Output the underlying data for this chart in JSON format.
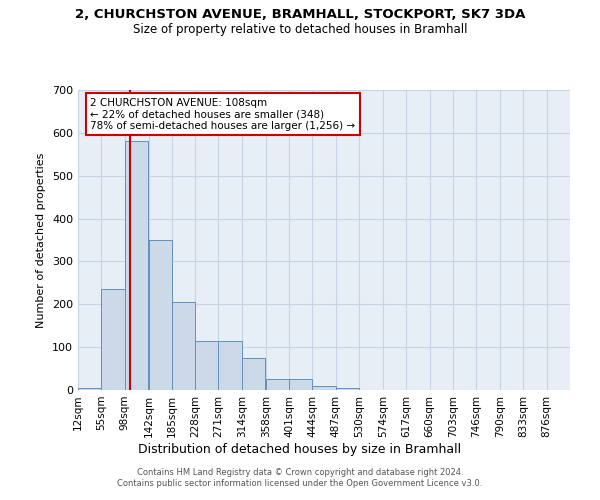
{
  "title_line1": "2, CHURCHSTON AVENUE, BRAMHALL, STOCKPORT, SK7 3DA",
  "title_line2": "Size of property relative to detached houses in Bramhall",
  "xlabel": "Distribution of detached houses by size in Bramhall",
  "ylabel": "Number of detached properties",
  "footer_line1": "Contains HM Land Registry data © Crown copyright and database right 2024.",
  "footer_line2": "Contains public sector information licensed under the Open Government Licence v3.0.",
  "annotation_line1": "2 CHURCHSTON AVENUE: 108sqm",
  "annotation_line2": "← 22% of detached houses are smaller (348)",
  "annotation_line3": "78% of semi-detached houses are larger (1,256) →",
  "bar_edges": [
    12,
    55,
    98,
    142,
    185,
    228,
    271,
    314,
    358,
    401,
    444,
    487,
    530,
    574,
    617,
    660,
    703,
    746,
    790,
    833,
    876
  ],
  "bar_heights": [
    5,
    235,
    580,
    350,
    205,
    115,
    115,
    75,
    25,
    25,
    10,
    5,
    0,
    0,
    0,
    0,
    0,
    0,
    0,
    0,
    0
  ],
  "property_line_x": 108,
  "bar_color": "#ccd9e8",
  "bar_edge_color": "#6090bb",
  "property_line_color": "#cc0000",
  "annotation_box_color": "#cc0000",
  "grid_color": "#c8d4e4",
  "bg_color": "#e8eef6",
  "ylim": [
    0,
    700
  ],
  "yticks": [
    0,
    100,
    200,
    300,
    400,
    500,
    600,
    700
  ]
}
